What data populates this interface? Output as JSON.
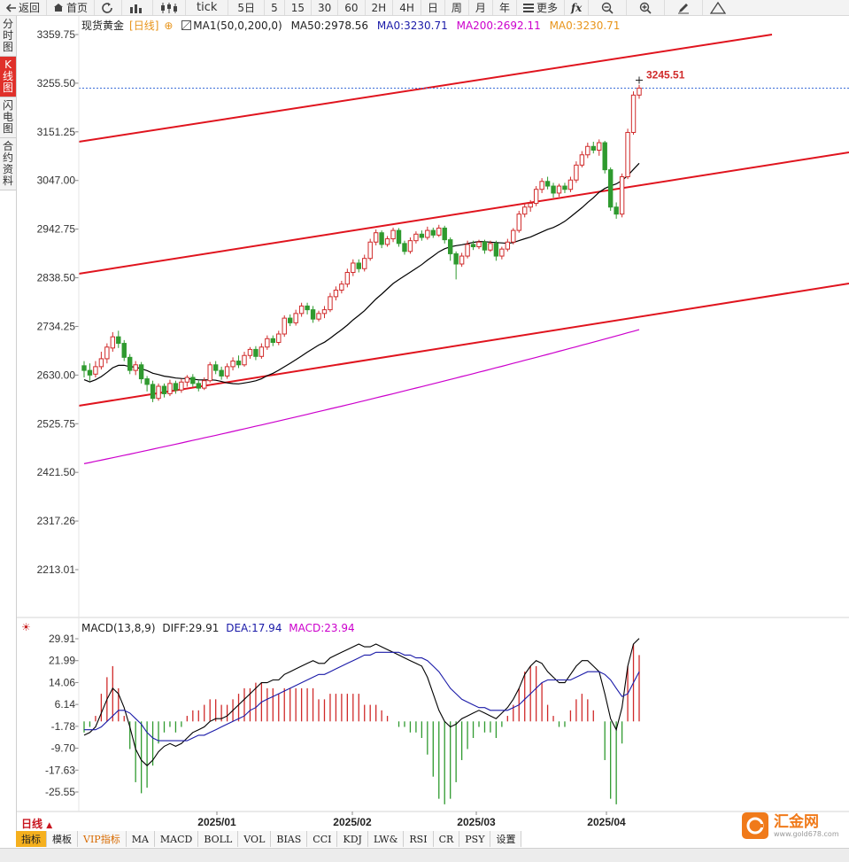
{
  "toolbar": {
    "back": "返回",
    "home": "首页",
    "tick": "tick",
    "periods": [
      "5日",
      "5",
      "15",
      "30",
      "60",
      "2H",
      "4H",
      "日",
      "周",
      "月",
      "年"
    ],
    "more": "更多",
    "fx": "fx"
  },
  "side_tabs": [
    "分时图",
    "K线图",
    "闪电图",
    "合约资料"
  ],
  "legend": {
    "symbol": "现货黄金",
    "period": "[日线]",
    "ma1": "MA1(50,0,200,0)",
    "ma50": "MA50:2978.56",
    "ma0": "MA0:3230.71",
    "ma200": "MA200:2692.11",
    "ma0b": "MA0:3230.71",
    "colors": {
      "ma50": "#000000",
      "ma0": "#1a1aa8",
      "ma200": "#cc00cc",
      "ma0b": "#e8941a"
    }
  },
  "price_axis": {
    "labels": [
      "3359.75",
      "3255.50",
      "3151.25",
      "3047.00",
      "2942.75",
      "2838.50",
      "2734.25",
      "2630.00",
      "2525.75",
      "2421.50",
      "2317.26",
      "2213.01"
    ]
  },
  "last_price": "3245.51",
  "macd_legend": {
    "label": "MACD(13,8,9)",
    "diff": "DIFF:29.91",
    "dea": "DEA:17.94",
    "macd": "MACD:23.94"
  },
  "macd_axis": {
    "labels": [
      "29.91",
      "21.99",
      "14.06",
      "6.14",
      "-1.78",
      "-9.70",
      "-17.63",
      "-25.55"
    ]
  },
  "date_axis": {
    "labels": [
      "2025/01",
      "2025/02",
      "2025/03",
      "2025/04"
    ]
  },
  "period_label": "日线",
  "bottom_tabs": [
    "指标",
    "模板",
    "VIP指标",
    "MA",
    "MACD",
    "BOLL",
    "VOL",
    "BIAS",
    "CCI",
    "KDJ",
    "LW&",
    "RSI",
    "CR",
    "PSY",
    "设置"
  ],
  "logo": {
    "name": "汇金网",
    "url": "www.gold678.com"
  },
  "chart_data": {
    "type": "candlestick",
    "price_range": [
      2213.01,
      3359.75
    ],
    "candles": [
      [
        2650,
        2640,
        2660,
        2625
      ],
      [
        2640,
        2630,
        2655,
        2618
      ],
      [
        2632,
        2648,
        2660,
        2625
      ],
      [
        2648,
        2665,
        2680,
        2642
      ],
      [
        2665,
        2690,
        2698,
        2655
      ],
      [
        2688,
        2712,
        2722,
        2680
      ],
      [
        2712,
        2698,
        2725,
        2688
      ],
      [
        2698,
        2668,
        2705,
        2660
      ],
      [
        2668,
        2640,
        2675,
        2632
      ],
      [
        2640,
        2652,
        2660,
        2630
      ],
      [
        2652,
        2622,
        2658,
        2612
      ],
      [
        2622,
        2610,
        2628,
        2595
      ],
      [
        2610,
        2580,
        2618,
        2572
      ],
      [
        2580,
        2606,
        2612,
        2575
      ],
      [
        2606,
        2590,
        2612,
        2582
      ],
      [
        2590,
        2612,
        2620,
        2585
      ],
      [
        2612,
        2598,
        2618,
        2590
      ],
      [
        2598,
        2615,
        2622,
        2592
      ],
      [
        2615,
        2625,
        2630,
        2605
      ],
      [
        2625,
        2612,
        2632,
        2605
      ],
      [
        2612,
        2602,
        2618,
        2595
      ],
      [
        2602,
        2618,
        2625,
        2598
      ],
      [
        2618,
        2652,
        2658,
        2614
      ],
      [
        2652,
        2640,
        2660,
        2632
      ],
      [
        2640,
        2628,
        2648,
        2620
      ],
      [
        2628,
        2648,
        2655,
        2622
      ],
      [
        2648,
        2660,
        2668,
        2640
      ],
      [
        2660,
        2652,
        2672,
        2645
      ],
      [
        2652,
        2672,
        2680,
        2648
      ],
      [
        2672,
        2685,
        2690,
        2665
      ],
      [
        2685,
        2670,
        2692,
        2662
      ],
      [
        2670,
        2690,
        2698,
        2665
      ],
      [
        2690,
        2708,
        2715,
        2684
      ],
      [
        2708,
        2700,
        2715,
        2692
      ],
      [
        2700,
        2718,
        2725,
        2694
      ],
      [
        2718,
        2752,
        2758,
        2712
      ],
      [
        2752,
        2742,
        2760,
        2735
      ],
      [
        2742,
        2762,
        2770,
        2736
      ],
      [
        2762,
        2778,
        2785,
        2755
      ],
      [
        2778,
        2770,
        2785,
        2760
      ],
      [
        2770,
        2750,
        2778,
        2742
      ],
      [
        2750,
        2762,
        2768,
        2745
      ],
      [
        2762,
        2770,
        2778,
        2752
      ],
      [
        2770,
        2798,
        2806,
        2765
      ],
      [
        2798,
        2812,
        2820,
        2790
      ],
      [
        2812,
        2825,
        2832,
        2805
      ],
      [
        2825,
        2850,
        2858,
        2818
      ],
      [
        2850,
        2870,
        2878,
        2842
      ],
      [
        2870,
        2858,
        2878,
        2850
      ],
      [
        2858,
        2880,
        2888,
        2852
      ],
      [
        2880,
        2915,
        2922,
        2875
      ],
      [
        2915,
        2935,
        2942,
        2908
      ],
      [
        2935,
        2910,
        2940,
        2902
      ],
      [
        2910,
        2922,
        2928,
        2905
      ],
      [
        2922,
        2940,
        2946,
        2915
      ],
      [
        2940,
        2912,
        2945,
        2905
      ],
      [
        2912,
        2895,
        2918,
        2888
      ],
      [
        2895,
        2918,
        2925,
        2890
      ],
      [
        2918,
        2932,
        2938,
        2912
      ],
      [
        2932,
        2925,
        2940,
        2918
      ],
      [
        2925,
        2940,
        2948,
        2920
      ],
      [
        2940,
        2930,
        2946,
        2924
      ],
      [
        2930,
        2945,
        2952,
        2926
      ],
      [
        2945,
        2920,
        2950,
        2912
      ],
      [
        2920,
        2890,
        2925,
        2875
      ],
      [
        2890,
        2868,
        2895,
        2835
      ],
      [
        2868,
        2885,
        2892,
        2862
      ],
      [
        2885,
        2910,
        2918,
        2880
      ],
      [
        2910,
        2905,
        2918,
        2898
      ],
      [
        2905,
        2915,
        2920,
        2900
      ],
      [
        2915,
        2898,
        2920,
        2890
      ],
      [
        2898,
        2912,
        2918,
        2894
      ],
      [
        2912,
        2885,
        2918,
        2875
      ],
      [
        2885,
        2900,
        2905,
        2878
      ],
      [
        2900,
        2915,
        2922,
        2895
      ],
      [
        2915,
        2940,
        2945,
        2910
      ],
      [
        2940,
        2975,
        2982,
        2935
      ],
      [
        2975,
        2990,
        2998,
        2968
      ],
      [
        2990,
        2998,
        3005,
        2980
      ],
      [
        2998,
        3028,
        3035,
        2992
      ],
      [
        3028,
        3045,
        3052,
        3020
      ],
      [
        3045,
        3035,
        3055,
        3028
      ],
      [
        3035,
        3020,
        3042,
        3010
      ],
      [
        3020,
        3035,
        3040,
        3012
      ],
      [
        3035,
        3028,
        3042,
        3020
      ],
      [
        3028,
        3048,
        3055,
        3022
      ],
      [
        3048,
        3080,
        3088,
        3042
      ],
      [
        3080,
        3102,
        3110,
        3075
      ],
      [
        3102,
        3120,
        3128,
        3095
      ],
      [
        3120,
        3112,
        3130,
        3105
      ],
      [
        3112,
        3128,
        3135,
        3100
      ],
      [
        3128,
        3070,
        3132,
        3062
      ],
      [
        3070,
        2990,
        3075,
        2982
      ],
      [
        2990,
        2975,
        3000,
        2965
      ],
      [
        2975,
        3055,
        3062,
        2968
      ],
      [
        3055,
        3150,
        3158,
        3050
      ],
      [
        3150,
        3230,
        3238,
        3145
      ],
      [
        3230,
        3245,
        3252,
        3222
      ]
    ],
    "macd": {
      "diff": [
        -5,
        -4,
        -2,
        3,
        8,
        12,
        10,
        5,
        -2,
        -10,
        -14,
        -16,
        -14,
        -11,
        -9,
        -8,
        -9,
        -8,
        -6,
        -4,
        -3,
        -2,
        0,
        1,
        1,
        2,
        4,
        6,
        8,
        10,
        12,
        14,
        14,
        15,
        15,
        17,
        18,
        19,
        20,
        21,
        22,
        21,
        21,
        23,
        24,
        25,
        26,
        27,
        28,
        27,
        27,
        28,
        27,
        26,
        25,
        24,
        23,
        22,
        21,
        20,
        16,
        10,
        4,
        0,
        -2,
        -1,
        1,
        2,
        3,
        4,
        3,
        2,
        1,
        3,
        5,
        8,
        12,
        17,
        20,
        22,
        21,
        18,
        16,
        14,
        14,
        17,
        20,
        22,
        22,
        20,
        18,
        10,
        1,
        -3,
        5,
        20,
        28,
        30
      ],
      "dea": [
        -3,
        -3,
        -3,
        -2,
        0,
        2,
        4,
        4,
        3,
        1,
        -1,
        -4,
        -6,
        -7,
        -7,
        -7,
        -7,
        -7,
        -7,
        -6,
        -5,
        -5,
        -4,
        -3,
        -2,
        -1,
        0,
        1,
        2,
        4,
        5,
        7,
        8,
        9,
        10,
        11,
        12,
        13,
        14,
        15,
        16,
        17,
        17,
        18,
        19,
        20,
        21,
        22,
        23,
        24,
        24,
        25,
        25,
        25,
        25,
        25,
        24,
        24,
        23,
        23,
        22,
        20,
        18,
        15,
        12,
        10,
        8,
        7,
        6,
        5,
        5,
        4,
        4,
        4,
        4,
        5,
        6,
        8,
        10,
        12,
        14,
        15,
        15,
        15,
        15,
        15,
        16,
        17,
        18,
        18,
        18,
        17,
        15,
        12,
        9,
        10,
        14,
        18
      ]
    }
  }
}
